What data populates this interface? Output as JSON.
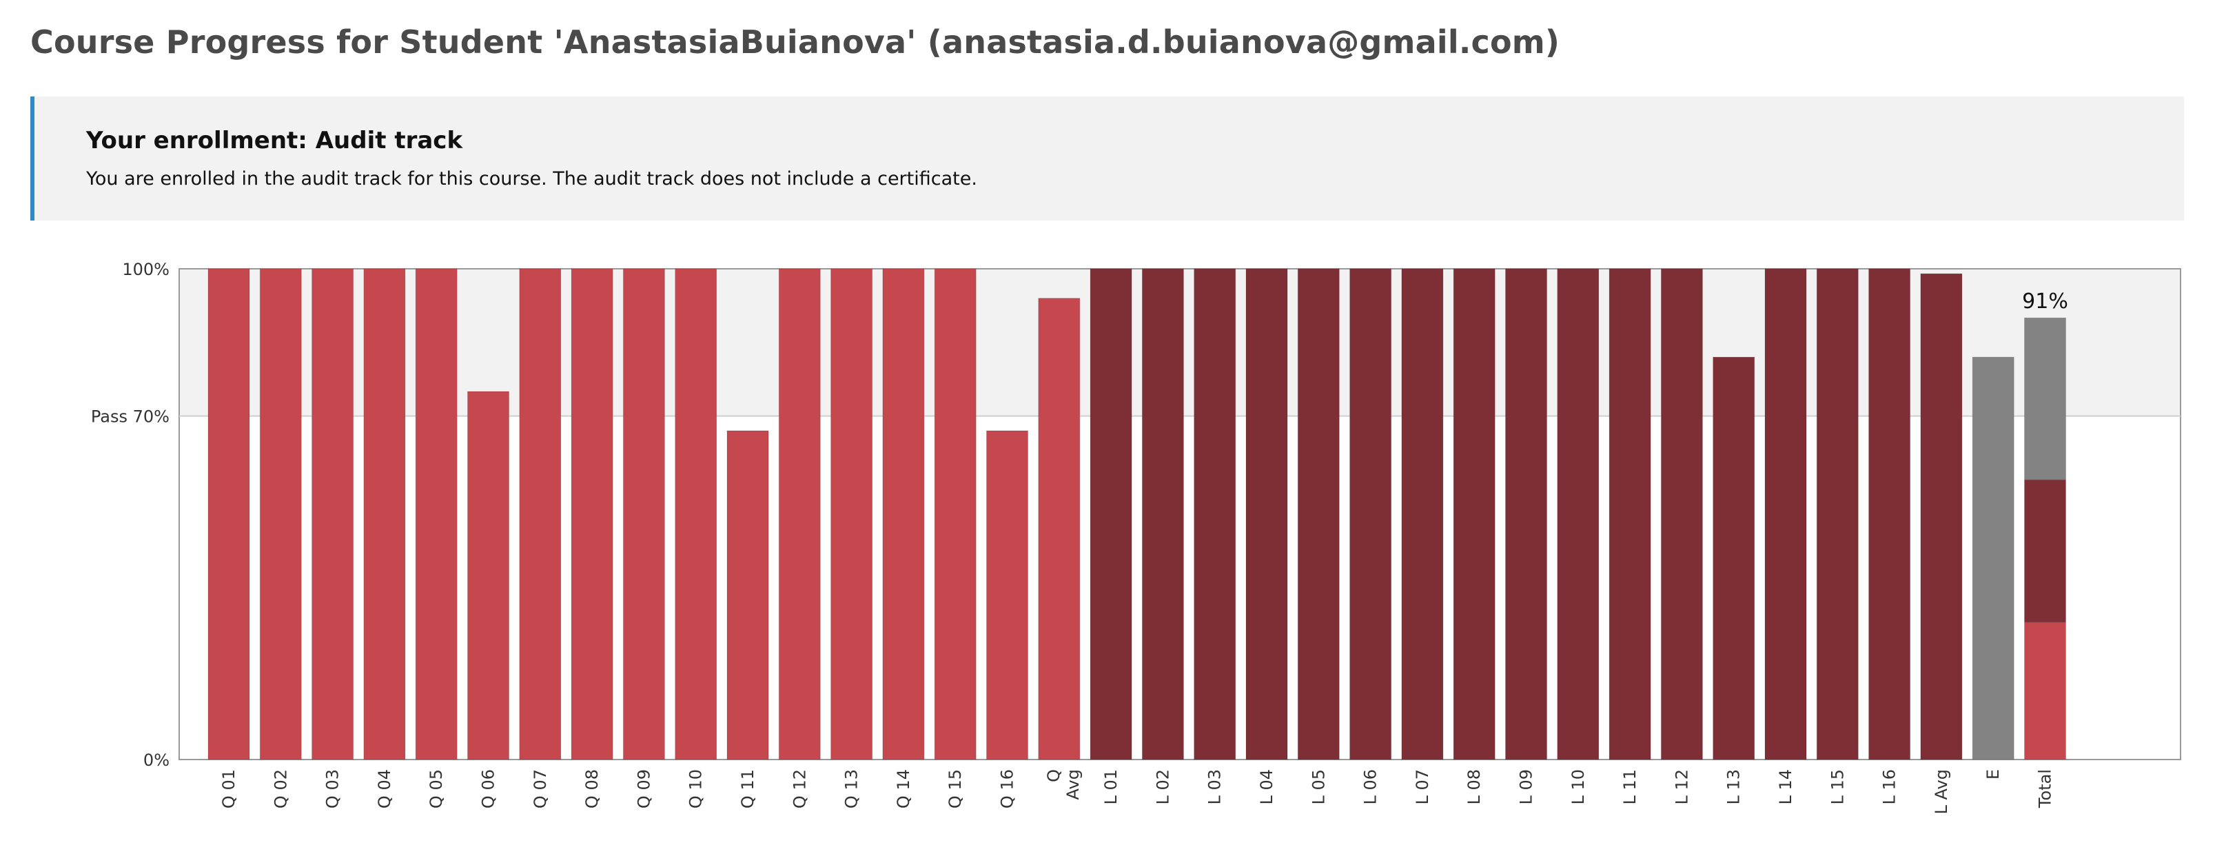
{
  "page": {
    "title": "Course Progress for Student 'AnastasiaBuianova' (anastasia.d.buianova@gmail.com)"
  },
  "enrollment": {
    "heading": "Your enrollment: Audit track",
    "message": "You are enrolled in the audit track for this course. The audit track does not include a certificate."
  },
  "chart_data": {
    "type": "bar",
    "ylim": [
      0,
      100
    ],
    "y_ticks": [
      {
        "value": 100,
        "label": "100%"
      },
      {
        "value": 70,
        "label": "Pass 70%"
      },
      {
        "value": 0,
        "label": "0%"
      }
    ],
    "passing_threshold": 70,
    "colors": {
      "quiz": "#c4484e",
      "lab": "#7e2f36",
      "exam": "#838383",
      "pass_band": "#f3f2f3",
      "axis": "#9a9a9a"
    },
    "categories": [
      {
        "label": "Q 01",
        "value": 100,
        "group": "quiz"
      },
      {
        "label": "Q 02",
        "value": 100,
        "group": "quiz"
      },
      {
        "label": "Q 03",
        "value": 100,
        "group": "quiz"
      },
      {
        "label": "Q 04",
        "value": 100,
        "group": "quiz"
      },
      {
        "label": "Q 05",
        "value": 100,
        "group": "quiz"
      },
      {
        "label": "Q 06",
        "value": 75,
        "group": "quiz"
      },
      {
        "label": "Q 07",
        "value": 100,
        "group": "quiz"
      },
      {
        "label": "Q 08",
        "value": 100,
        "group": "quiz"
      },
      {
        "label": "Q 09",
        "value": 100,
        "group": "quiz"
      },
      {
        "label": "Q 10",
        "value": 100,
        "group": "quiz"
      },
      {
        "label": "Q 11",
        "value": 67,
        "group": "quiz"
      },
      {
        "label": "Q 12",
        "value": 100,
        "group": "quiz"
      },
      {
        "label": "Q 13",
        "value": 100,
        "group": "quiz"
      },
      {
        "label": "Q 14",
        "value": 100,
        "group": "quiz"
      },
      {
        "label": "Q 15",
        "value": 100,
        "group": "quiz"
      },
      {
        "label": "Q 16",
        "value": 67,
        "group": "quiz"
      },
      {
        "label": "Q Avg",
        "value": 94,
        "group": "quiz"
      },
      {
        "label": "L 01",
        "value": 100,
        "group": "lab"
      },
      {
        "label": "L 02",
        "value": 100,
        "group": "lab"
      },
      {
        "label": "L 03",
        "value": 100,
        "group": "lab"
      },
      {
        "label": "L 04",
        "value": 100,
        "group": "lab"
      },
      {
        "label": "L 05",
        "value": 100,
        "group": "lab"
      },
      {
        "label": "L 06",
        "value": 100,
        "group": "lab"
      },
      {
        "label": "L 07",
        "value": 100,
        "group": "lab"
      },
      {
        "label": "L 08",
        "value": 100,
        "group": "lab"
      },
      {
        "label": "L 09",
        "value": 100,
        "group": "lab"
      },
      {
        "label": "L 10",
        "value": 100,
        "group": "lab"
      },
      {
        "label": "L 11",
        "value": 100,
        "group": "lab"
      },
      {
        "label": "L 12",
        "value": 100,
        "group": "lab"
      },
      {
        "label": "L 13",
        "value": 82,
        "group": "lab"
      },
      {
        "label": "L 14",
        "value": 100,
        "group": "lab"
      },
      {
        "label": "L 15",
        "value": 100,
        "group": "lab"
      },
      {
        "label": "L 16",
        "value": 100,
        "group": "lab"
      },
      {
        "label": "L Avg",
        "value": 99,
        "group": "lab"
      },
      {
        "label": "E",
        "value": 82,
        "group": "exam"
      }
    ],
    "total": {
      "label": "Total",
      "value_label": "91%",
      "segments": [
        {
          "group": "quiz",
          "value": 28
        },
        {
          "group": "lab",
          "value": 29
        },
        {
          "group": "exam",
          "value": 33
        }
      ]
    }
  }
}
